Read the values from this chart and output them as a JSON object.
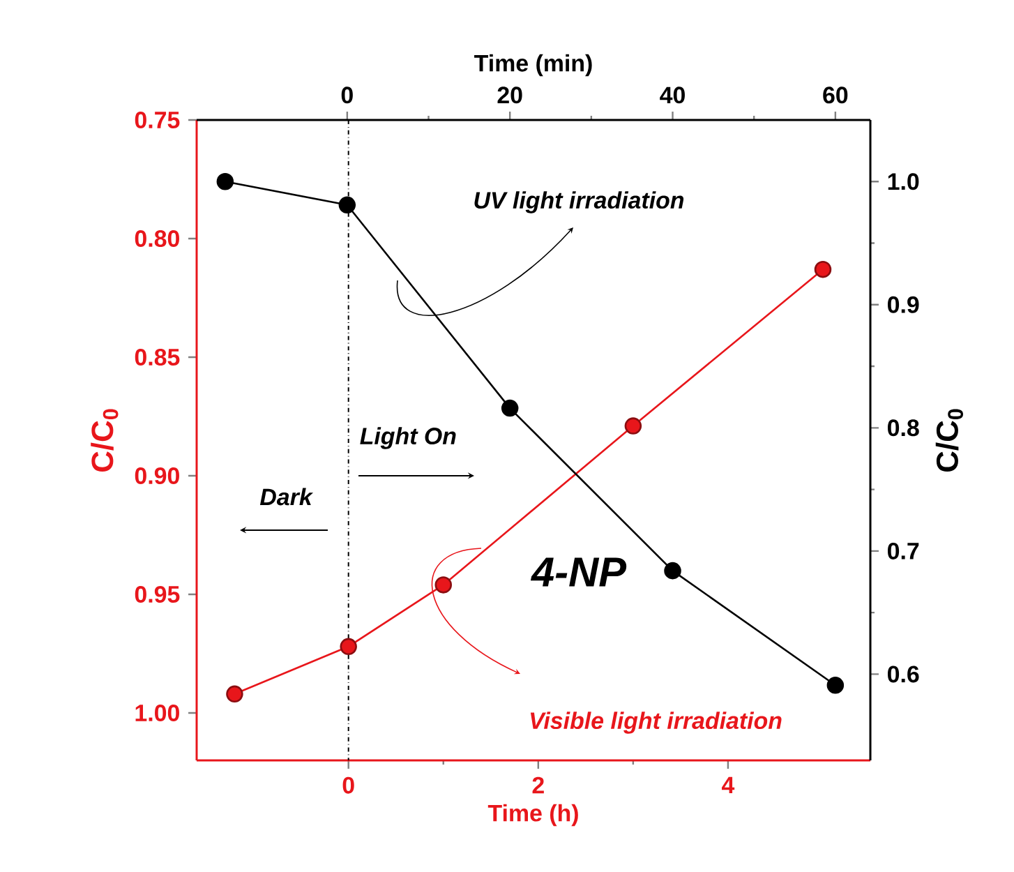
{
  "chart_data": [
    {
      "type": "line",
      "xlabel": "Time (h)",
      "ylabel": "C/C$_{0}$",
      "xlim": [
        -1.6,
        5.5
      ],
      "xticks": [
        0,
        2,
        4
      ],
      "ylim": [
        1.02,
        0.75
      ],
      "yticks": [
        {
          "value": 0.75,
          "label": "0.75"
        },
        {
          "value": 0.8,
          "label": "0.80"
        },
        {
          "value": 0.85,
          "label": "0.85"
        },
        {
          "value": 0.9,
          "label": "0.90"
        },
        {
          "value": 0.95,
          "label": "0.95"
        },
        {
          "value": 1.0,
          "label": "1.00"
        }
      ],
      "series": [
        {
          "color": "#e8161b",
          "x": [
            -1.2,
            0,
            1,
            3,
            5
          ],
          "values": [
            0.992,
            0.972,
            0.946,
            0.879,
            0.813
          ]
        }
      ],
      "marker": "circle",
      "line_style": "solid",
      "grid": false,
      "ref_lines": [
        {
          "axis": "x",
          "value": 0,
          "color": "#000000",
          "line_style": "dashdot"
        }
      ],
      "annotations": [
        "UV light irradiation",
        "Light On",
        "Dark",
        "4-NP",
        "Visible light irradiation"
      ]
    },
    {
      "type": "line",
      "xlabel": "Time (min)",
      "ylabel": "C/C$_{0}$",
      "xlim": [
        -18.5,
        64.3
      ],
      "xticks": [
        0,
        20,
        40,
        60
      ],
      "ylim": [
        0.53,
        1.05
      ],
      "yticks": [
        0.6,
        0.7,
        0.8,
        0.9,
        {
          "value": 1.0,
          "label": "1.0"
        }
      ],
      "series": [
        {
          "color": "#000000",
          "x": [
            -15,
            0,
            20,
            40,
            60
          ],
          "values": [
            1.0,
            0.981,
            0.816,
            0.684,
            0.591
          ]
        }
      ],
      "marker": "circle",
      "line_style": "solid",
      "grid": false
    }
  ]
}
